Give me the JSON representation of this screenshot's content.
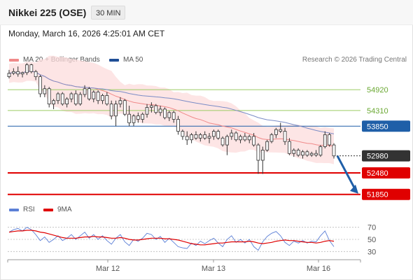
{
  "header": {
    "instrument": "Nikkei 225 (OSE)",
    "timeframe": "30 MIN"
  },
  "datetime": "Monday, March 16, 2026 4:25:01 AM CET",
  "legend": {
    "ma20_bb_label": "MA 20 + Bollinger Bands",
    "ma50_label": "MA 50",
    "rsi_label": "RSI",
    "rsi_ma_label": "9MA"
  },
  "copyright": "Research © 2026 Trading Central",
  "colors": {
    "bb_fill": "#fcdcdc",
    "ma20": "#f08a8a",
    "ma50": "#7b8cc6",
    "up_candle": "#f0f0f0",
    "candle_outline": "#333333",
    "resistance": "#9ccc65",
    "pivot": "#1f5fa8",
    "support": "#e00000",
    "current": "#333333",
    "rsi": "#5b7fd6",
    "rsi_ma": "#e00000",
    "arrow": "#1f5fa8"
  },
  "chart_data": [
    {
      "type": "candlestick",
      "title": "Nikkei 225 (OSE)",
      "x_ticks": [
        "Mar 12",
        "Mar 13",
        "Mar 16"
      ],
      "y_range": [
        51700,
        55600
      ],
      "current_price": 52980,
      "levels": [
        {
          "label": "54920",
          "value": 54920,
          "kind": "resistance"
        },
        {
          "label": "54310",
          "value": 54310,
          "kind": "resistance"
        },
        {
          "label": "53850",
          "value": 53850,
          "kind": "pivot"
        },
        {
          "label": "52980",
          "value": 52980,
          "kind": "current"
        },
        {
          "label": "52480",
          "value": 52480,
          "kind": "support"
        },
        {
          "label": "51850",
          "value": 51850,
          "kind": "support"
        }
      ],
      "ohlc": [
        [
          55300,
          55500,
          55250,
          55400
        ],
        [
          55400,
          55550,
          55350,
          55450
        ],
        [
          55450,
          55600,
          55300,
          55380
        ],
        [
          55380,
          55450,
          55280,
          55420
        ],
        [
          55420,
          55700,
          55350,
          55650
        ],
        [
          55650,
          55680,
          55400,
          55450
        ],
        [
          55450,
          55500,
          55200,
          55300
        ],
        [
          55300,
          55350,
          54700,
          54800
        ],
        [
          54800,
          55050,
          54700,
          54950
        ],
        [
          54950,
          55000,
          54400,
          54500
        ],
        [
          54500,
          54650,
          54350,
          54600
        ],
        [
          54600,
          54850,
          54500,
          54800
        ],
        [
          54800,
          54850,
          54450,
          54500
        ],
        [
          54500,
          54700,
          54400,
          54650
        ],
        [
          54650,
          54850,
          54550,
          54800
        ],
        [
          54800,
          54900,
          54450,
          54500
        ],
        [
          54500,
          54850,
          54450,
          54780
        ],
        [
          54780,
          55050,
          54700,
          54950
        ],
        [
          54950,
          55000,
          54600,
          54650
        ],
        [
          54650,
          54900,
          54550,
          54850
        ],
        [
          54850,
          54900,
          54500,
          54600
        ],
        [
          54600,
          54800,
          54500,
          54750
        ],
        [
          54750,
          54850,
          54450,
          54500
        ],
        [
          54500,
          54600,
          54050,
          54150
        ],
        [
          54150,
          54600,
          53850,
          54500
        ],
        [
          54500,
          54700,
          54400,
          54600
        ],
        [
          54600,
          54650,
          54150,
          54200
        ],
        [
          54200,
          54450,
          53850,
          53950
        ],
        [
          53950,
          54200,
          53850,
          54150
        ],
        [
          54150,
          54250,
          53950,
          54050
        ],
        [
          54050,
          54250,
          53950,
          54200
        ],
        [
          54200,
          54500,
          54100,
          54400
        ],
        [
          54400,
          54550,
          54250,
          54450
        ],
        [
          54450,
          54500,
          54200,
          54250
        ],
        [
          54250,
          54450,
          54150,
          54350
        ],
        [
          54350,
          54400,
          54050,
          54100
        ],
        [
          54100,
          54300,
          54000,
          54250
        ],
        [
          54250,
          54300,
          53950,
          54050
        ],
        [
          54050,
          54150,
          53600,
          53700
        ],
        [
          53700,
          53750,
          53450,
          53550
        ],
        [
          53550,
          53700,
          53300,
          53450
        ],
        [
          53450,
          53650,
          53350,
          53600
        ],
        [
          53600,
          53700,
          53450,
          53500
        ],
        [
          53500,
          53650,
          53400,
          53600
        ],
        [
          53600,
          53700,
          53450,
          53500
        ],
        [
          53500,
          53650,
          53350,
          53550
        ],
        [
          53550,
          53750,
          53450,
          53700
        ],
        [
          53700,
          53750,
          53450,
          53500
        ],
        [
          53500,
          53550,
          53250,
          53300
        ],
        [
          53300,
          53600,
          53000,
          53550
        ],
        [
          53550,
          53750,
          53450,
          53650
        ],
        [
          53650,
          53700,
          53400,
          53450
        ],
        [
          53450,
          53600,
          53350,
          53550
        ],
        [
          53550,
          53650,
          53400,
          53450
        ],
        [
          53450,
          53600,
          53350,
          53550
        ],
        [
          53550,
          53650,
          53250,
          53300
        ],
        [
          53300,
          53350,
          52450,
          52850
        ],
        [
          52850,
          53250,
          52450,
          53150
        ],
        [
          53150,
          53450,
          53100,
          53400
        ],
        [
          53400,
          53650,
          53350,
          53600
        ],
        [
          53600,
          53800,
          53500,
          53750
        ],
        [
          53750,
          53950,
          53650,
          53700
        ],
        [
          53700,
          53800,
          53300,
          53400
        ],
        [
          53400,
          53500,
          53000,
          53050
        ],
        [
          53050,
          53200,
          52950,
          53150
        ],
        [
          53150,
          53200,
          52950,
          53000
        ],
        [
          53000,
          53150,
          52900,
          53100
        ],
        [
          53100,
          53150,
          52950,
          53000
        ],
        [
          53000,
          53100,
          52950,
          53050
        ],
        [
          53050,
          53150,
          52950,
          53000
        ],
        [
          53000,
          53300,
          52950,
          53250
        ],
        [
          53250,
          53700,
          53200,
          53600
        ],
        [
          53600,
          53650,
          53250,
          53300
        ],
        [
          53300,
          53350,
          52900,
          52980
        ]
      ]
    },
    {
      "type": "line",
      "title": "RSI",
      "y_range": [
        20,
        80
      ],
      "y_ticks": [
        70,
        50,
        30
      ],
      "series": [
        {
          "name": "RSI",
          "values": [
            62,
            66,
            68,
            64,
            70,
            66,
            58,
            48,
            54,
            45,
            50,
            56,
            48,
            52,
            58,
            50,
            56,
            62,
            52,
            58,
            50,
            56,
            48,
            42,
            52,
            58,
            46,
            40,
            50,
            47,
            52,
            60,
            58,
            50,
            55,
            45,
            52,
            45,
            38,
            36,
            35,
            44,
            40,
            47,
            43,
            48,
            52,
            44,
            38,
            50,
            56,
            45,
            50,
            44,
            50,
            38,
            32,
            46,
            55,
            60,
            63,
            56,
            45,
            40,
            47,
            44,
            48,
            44,
            47,
            46,
            56,
            64,
            48,
            38
          ]
        },
        {
          "name": "9MA",
          "values": [
            62,
            63,
            64,
            64,
            65,
            65,
            64,
            62,
            61,
            59,
            57,
            55,
            53,
            52,
            52,
            52,
            53,
            54,
            54,
            55,
            54,
            54,
            53,
            52,
            52,
            53,
            52,
            50,
            49,
            49,
            50,
            51,
            52,
            52,
            52,
            51,
            51,
            50,
            49,
            47,
            45,
            43,
            42,
            41,
            41,
            42,
            43,
            44,
            44,
            45,
            46,
            46,
            46,
            46,
            47,
            46,
            44,
            43,
            44,
            45,
            47,
            48,
            49,
            48,
            48,
            47,
            46,
            45,
            45,
            44,
            45,
            47,
            48,
            47
          ]
        }
      ]
    }
  ]
}
